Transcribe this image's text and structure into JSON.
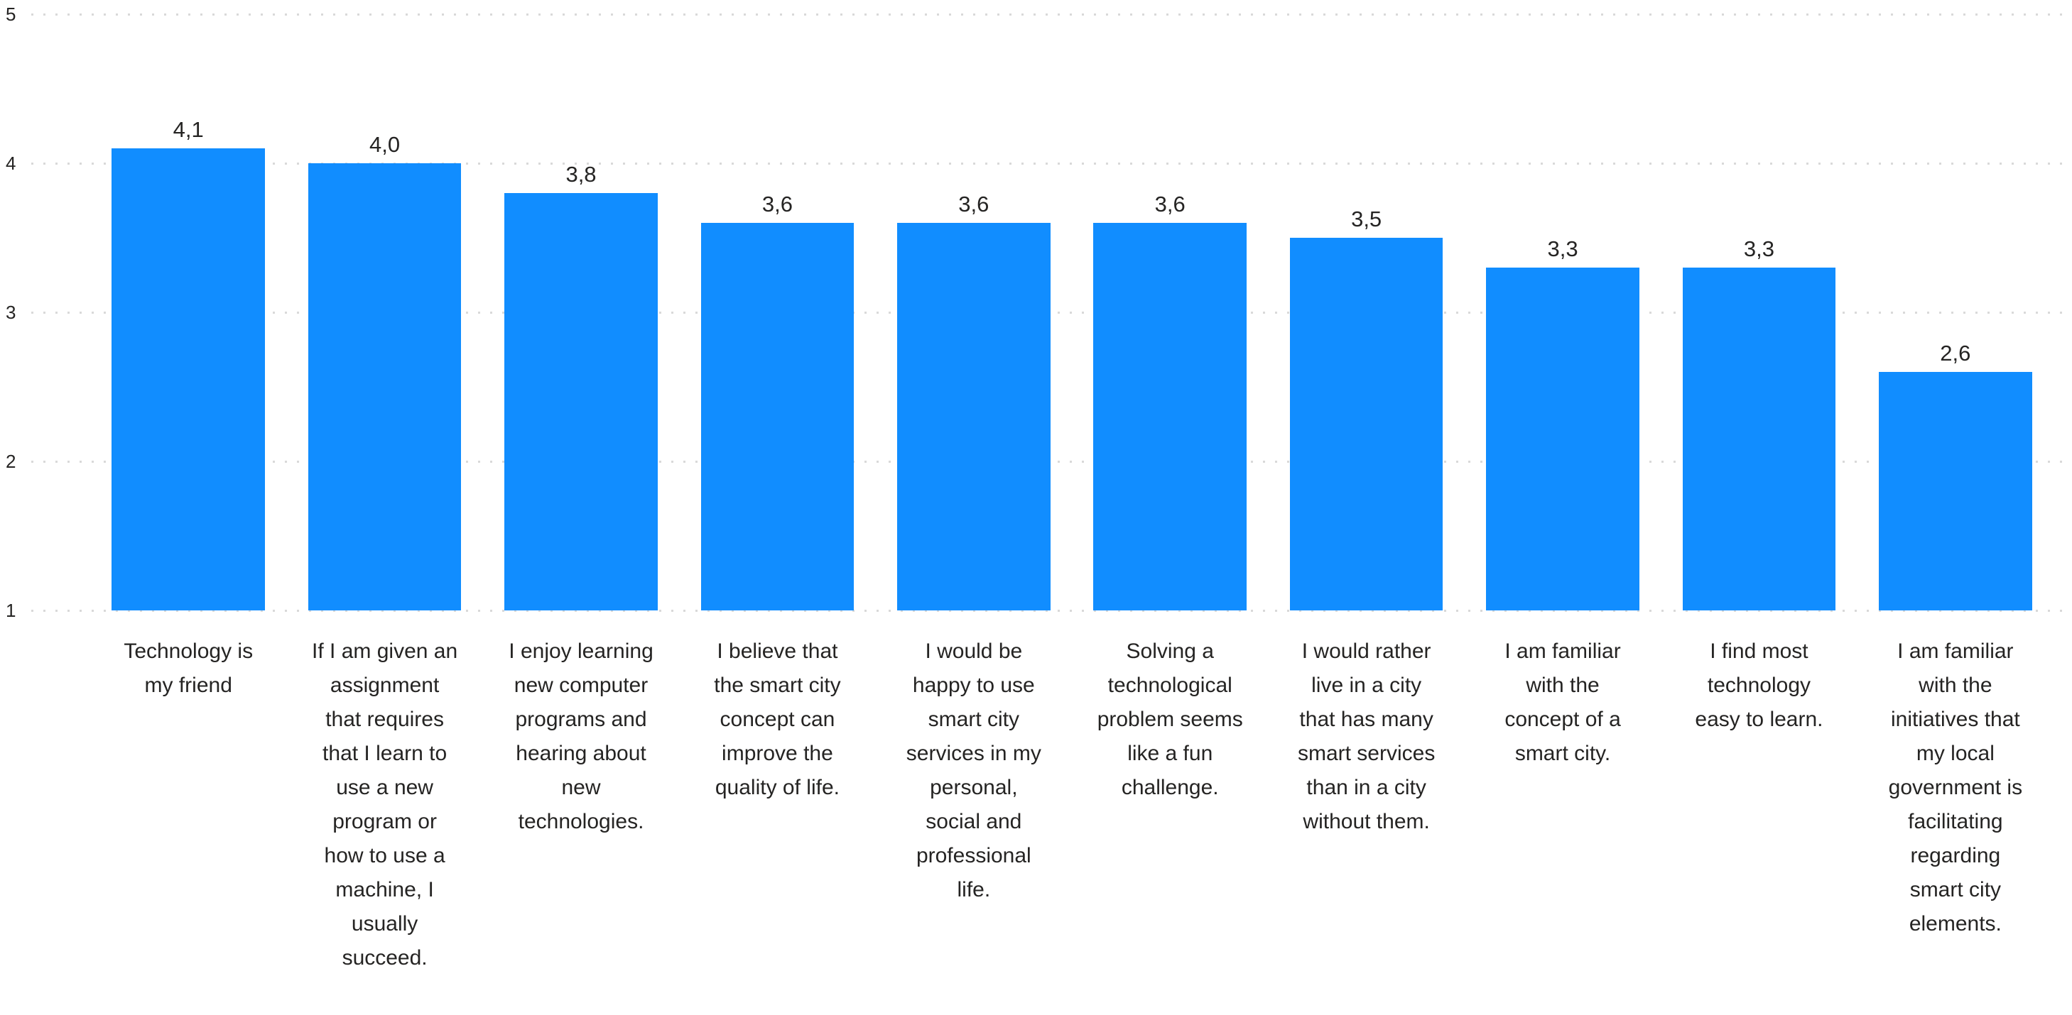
{
  "chart_data": {
    "type": "bar",
    "title": "",
    "categories": [
      "Technology is my friend",
      "If I am given an assignment that requires that I learn to use a new program or how to use a machine, I usually succeed.",
      "I enjoy learning new computer programs and hearing about new technologies.",
      "I believe that the smart city concept can improve the quality of life.",
      "I would be happy to use smart city services in my personal, social and professional life.",
      "Solving a technological problem seems like a fun challenge.",
      "I would rather live in a city that has many smart services than in a city without them.",
      "I am familiar with the concept of a smart city.",
      "I find most technology easy to learn.",
      "I am familiar with the initiatives that my local government is facilitating regarding smart city elements."
    ],
    "values": [
      4.1,
      4.0,
      3.8,
      3.6,
      3.6,
      3.6,
      3.5,
      3.3,
      3.3,
      2.6
    ],
    "value_labels": [
      "4,1",
      "4,0",
      "3,8",
      "3,6",
      "3,6",
      "3,6",
      "3,5",
      "3,3",
      "3,3",
      "2,6"
    ],
    "decimal_separator": ",",
    "xlabel": "",
    "ylabel": "",
    "ylim": [
      1,
      5
    ],
    "y_ticks": [
      "5",
      "4",
      "3",
      "2",
      "1"
    ],
    "grid": "horizontal-dotted",
    "legend": "none",
    "colors": {
      "bar": "#118DFF",
      "text": "#252423",
      "gridline": "#D9D9D9",
      "background": "#FFFFFF"
    }
  }
}
